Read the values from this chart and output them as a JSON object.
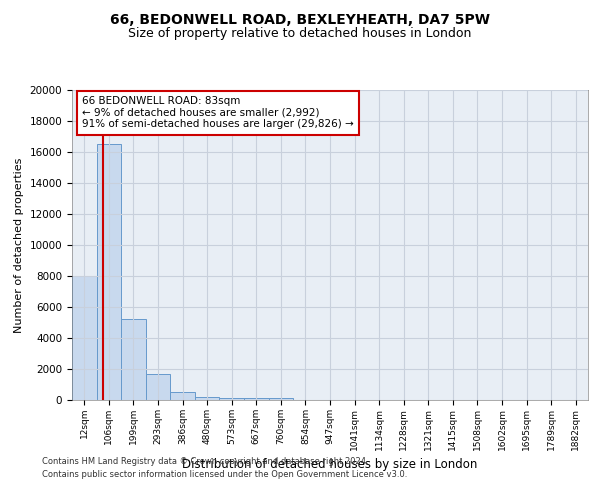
{
  "title_line1": "66, BEDONWELL ROAD, BEXLEYHEATH, DA7 5PW",
  "title_line2": "Size of property relative to detached houses in London",
  "xlabel": "Distribution of detached houses by size in London",
  "ylabel": "Number of detached properties",
  "bar_labels": [
    "12sqm",
    "106sqm",
    "199sqm",
    "293sqm",
    "386sqm",
    "480sqm",
    "573sqm",
    "667sqm",
    "760sqm",
    "854sqm",
    "947sqm",
    "1041sqm",
    "1134sqm",
    "1228sqm",
    "1321sqm",
    "1415sqm",
    "1508sqm",
    "1602sqm",
    "1695sqm",
    "1789sqm",
    "1882sqm"
  ],
  "bar_heights": [
    8000,
    16500,
    5200,
    1700,
    500,
    220,
    160,
    115,
    110,
    0,
    0,
    0,
    0,
    0,
    0,
    0,
    0,
    0,
    0,
    0,
    0
  ],
  "bar_color": "#c8d9ee",
  "bar_edge_color": "#6699cc",
  "grid_color": "#c8d0dc",
  "background_color": "#e8eef5",
  "annotation_title": "66 BEDONWELL ROAD: 83sqm",
  "annotation_line2": "← 9% of detached houses are smaller (2,992)",
  "annotation_line3": "91% of semi-detached houses are larger (29,826) →",
  "annotation_box_color": "#ffffff",
  "annotation_border_color": "#cc0000",
  "red_line_color": "#cc0000",
  "ylim": [
    0,
    20000
  ],
  "yticks": [
    0,
    2000,
    4000,
    6000,
    8000,
    10000,
    12000,
    14000,
    16000,
    18000,
    20000
  ],
  "footer_line1": "Contains HM Land Registry data © Crown copyright and database right 2024.",
  "footer_line2": "Contains public sector information licensed under the Open Government Licence v3.0.",
  "title_fontsize": 10,
  "subtitle_fontsize": 9
}
